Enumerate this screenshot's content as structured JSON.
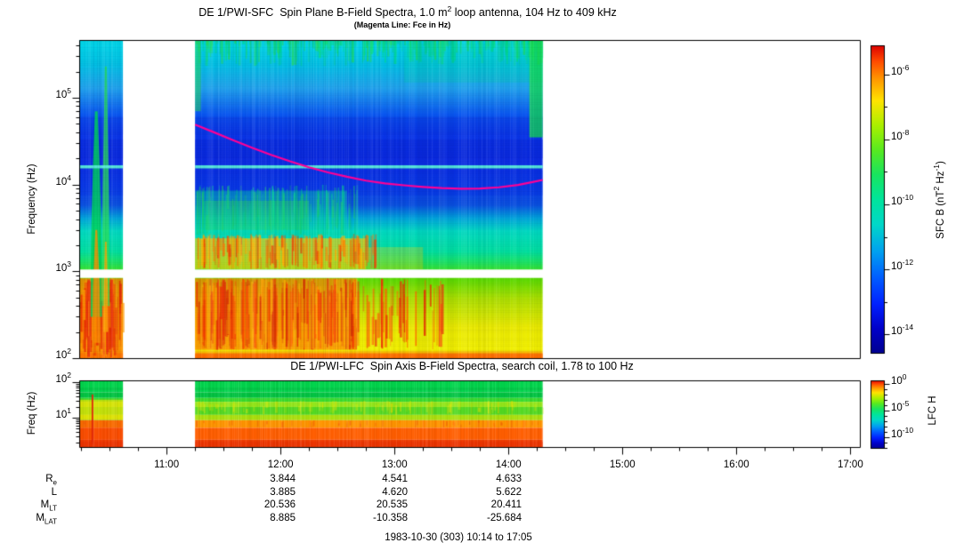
{
  "footer": {
    "text": "1983-10-30 (303) 10:14 to 17:05"
  },
  "ephemeris": {
    "columns": [
      "12:00",
      "13:00",
      "14:00"
    ],
    "rows": [
      {
        "label": "R",
        "sub": "e",
        "values": [
          "3.844",
          "4.541",
          "4.633"
        ]
      },
      {
        "label": "L",
        "sub": "",
        "values": [
          "3.885",
          "4.620",
          "5.622"
        ]
      },
      {
        "label": "M",
        "sub": "LT",
        "values": [
          "20.536",
          "20.535",
          "20.411"
        ]
      },
      {
        "label": "M",
        "sub": "LAT",
        "values": [
          "8.885",
          "-10.358",
          "-25.684"
        ]
      }
    ]
  },
  "chart_data": [
    {
      "type": "heatmap",
      "name": "SFC spectrogram",
      "title": "DE 1/PWI-SFC  Spin Plane B-Field Spectra, 1.0 m^2 loop antenna, 104 Hz to 409 kHz",
      "subtitle": "(Magenta Line: Fce in Hz)",
      "ylabel": "Frequency (Hz)",
      "ylim_hz": [
        100,
        463000
      ],
      "ytick_exponents": [
        5,
        4,
        3,
        2
      ],
      "xlim_time": [
        "10:14",
        "17:05"
      ],
      "xtick_labels": [
        "11:00",
        "12:00",
        "13:00",
        "14:00",
        "15:00",
        "16:00",
        "17:00"
      ],
      "data_time_segments": [
        [
          "10:14",
          "10:37"
        ],
        [
          "11:15",
          "14:18"
        ]
      ],
      "receiver_gap_hz": [
        840,
        1050
      ],
      "colorbar": {
        "label": "SFC B (nT^2 Hz^-1)",
        "tick_exponents": [
          -6,
          -8,
          -10,
          -12,
          -14
        ],
        "range_exp": [
          -5.1,
          -14.6
        ]
      },
      "fce_line": {
        "color": "#ff0096",
        "points": [
          [
            "11:15",
            49000
          ],
          [
            "11:25",
            40000
          ],
          [
            "11:35",
            32500
          ],
          [
            "11:45",
            26500
          ],
          [
            "11:55",
            22000
          ],
          [
            "12:05",
            18500
          ],
          [
            "12:15",
            15800
          ],
          [
            "12:25",
            13800
          ],
          [
            "12:35",
            12300
          ],
          [
            "12:45",
            11100
          ],
          [
            "12:55",
            10300
          ],
          [
            "13:05",
            9800
          ],
          [
            "13:15",
            9400
          ],
          [
            "13:25",
            9100
          ],
          [
            "13:35",
            8950
          ],
          [
            "13:45",
            9000
          ],
          [
            "13:55",
            9300
          ],
          [
            "14:05",
            9900
          ],
          [
            "14:12",
            10600
          ],
          [
            "14:18",
            11300
          ]
        ]
      },
      "background_profile": [
        [
          463000,
          "#00d8ea"
        ],
        [
          250000,
          "#00c2e4"
        ],
        [
          130000,
          "#20a2ec"
        ],
        [
          65000,
          "#0a58f0"
        ],
        [
          38000,
          "#0a36e8"
        ],
        [
          19000,
          "#0c2ce2"
        ],
        [
          9500,
          "#0a3ae6"
        ],
        [
          5800,
          "#0a50e0"
        ],
        [
          4000,
          "#00a8da"
        ],
        [
          2900,
          "#00d8c0"
        ],
        [
          1700,
          "#00e0a0"
        ],
        [
          1250,
          "#1ce260"
        ],
        [
          1060,
          "#34e234"
        ],
        [
          950,
          "#44da00"
        ],
        [
          470,
          "#b0e000"
        ],
        [
          230,
          "#eaea00"
        ],
        [
          125,
          "#f2f000"
        ],
        [
          110,
          "#ff8c00"
        ],
        [
          100,
          "#ff5400"
        ]
      ],
      "features": [
        {
          "kind": "band",
          "t": [
            "10:14",
            "14:18"
          ],
          "f": [
            20000,
            33000
          ],
          "color": "#0726d8",
          "alpha": 0.5
        },
        {
          "kind": "band",
          "t": [
            "10:14",
            "14:18"
          ],
          "f": [
            38000,
            60000
          ],
          "color": "#0a30dc",
          "alpha": 0.35
        },
        {
          "kind": "band",
          "t": [
            "10:14",
            "14:18"
          ],
          "f": [
            7500,
            14500
          ],
          "color": "#0830e0",
          "alpha": 0.3
        },
        {
          "kind": "drips",
          "t": [
            "11:15",
            "14:18"
          ],
          "f": [
            140000,
            463000
          ],
          "colors": [
            "#00e07c",
            "#00cf9e",
            "#22dc55"
          ],
          "count": 320
        },
        {
          "kind": "band",
          "t": [
            "13:05",
            "14:18"
          ],
          "f": [
            150000,
            420000
          ],
          "color": "#00d890",
          "alpha": 0.2
        },
        {
          "kind": "band",
          "t": [
            "14:11",
            "14:18"
          ],
          "f": [
            35000,
            463000
          ],
          "color": "#16dc4c",
          "alpha": 0.75
        },
        {
          "kind": "band",
          "t": [
            "11:15",
            "11:18"
          ],
          "f": [
            70000,
            463000
          ],
          "color": "#2edc50",
          "alpha": 0.5
        },
        {
          "kind": "band",
          "t": [
            "11:15",
            "12:45"
          ],
          "f": [
            1060,
            2400
          ],
          "color": "#ffd000",
          "alpha": 0.65
        },
        {
          "kind": "band",
          "t": [
            "12:45",
            "13:15"
          ],
          "f": [
            1060,
            1900
          ],
          "color": "#ffd000",
          "alpha": 0.3
        },
        {
          "kind": "streaks",
          "t": [
            "11:15",
            "12:50"
          ],
          "f": [
            1060,
            2700
          ],
          "colors": [
            "#ff8000",
            "#f04000",
            "#ffb400"
          ],
          "count": 160,
          "alpha": [
            0.25,
            0.8
          ],
          "w": [
            1,
            3
          ]
        },
        {
          "kind": "band",
          "t": [
            "11:15",
            "12:35"
          ],
          "f": [
            2600,
            8500
          ],
          "color": "#00d9a8",
          "alpha": 0.4
        },
        {
          "kind": "band",
          "t": [
            "11:20",
            "12:15"
          ],
          "f": [
            3000,
            6500
          ],
          "color": "#2edc50",
          "alpha": 0.35
        },
        {
          "kind": "streaks",
          "t": [
            "11:15",
            "12:40"
          ],
          "f": [
            2600,
            10000
          ],
          "colors": [
            "#20d860",
            "#00d890"
          ],
          "count": 130,
          "alpha": [
            0.15,
            0.5
          ],
          "w": [
            1,
            2
          ]
        },
        {
          "kind": "band",
          "t": [
            "11:15",
            "12:40"
          ],
          "f": [
            125,
            830
          ],
          "color": "#ff8200",
          "alpha": 0.72
        },
        {
          "kind": "streaks",
          "t": [
            "11:15",
            "12:40"
          ],
          "f": [
            125,
            830
          ],
          "colors": [
            "#ee2800",
            "#ff5500",
            "#d83000",
            "#ffb000"
          ],
          "count": 260,
          "alpha": [
            0.25,
            0.75
          ],
          "w": [
            1,
            3
          ]
        },
        {
          "kind": "streaks",
          "t": [
            "12:40",
            "13:25"
          ],
          "f": [
            125,
            830
          ],
          "colors": [
            "#ee3000",
            "#ff6600"
          ],
          "count": 46,
          "alpha": [
            0.35,
            0.85
          ],
          "w": [
            1,
            3
          ]
        },
        {
          "kind": "band",
          "t": [
            "10:14",
            "14:18"
          ],
          "f": [
            100,
            113
          ],
          "color": "#ff7000",
          "alpha": 0.85
        },
        {
          "kind": "band",
          "t": [
            "10:14",
            "10:37"
          ],
          "f": [
            100,
            830
          ],
          "color": "#ff7800",
          "alpha": 0.75
        },
        {
          "kind": "streaks",
          "t": [
            "10:14",
            "10:37"
          ],
          "f": [
            100,
            830
          ],
          "colors": [
            "#e82800",
            "#ff9800"
          ],
          "count": 90,
          "alpha": [
            0.3,
            0.8
          ],
          "w": [
            1,
            3
          ]
        },
        {
          "kind": "plume",
          "t_center": "10:23",
          "hw_min": [
            0.7,
            3.0
          ],
          "f": [
            300,
            70000
          ],
          "color": "#00d855",
          "alpha": 0.8
        },
        {
          "kind": "plume",
          "t_center": "10:28",
          "hw_min": [
            0.5,
            2.0
          ],
          "f": [
            400,
            230000
          ],
          "color": "#22dc50",
          "alpha": 0.75
        },
        {
          "kind": "plume",
          "t_center": "10:23",
          "hw_min": [
            0.5,
            2.2
          ],
          "f": [
            150,
            3000
          ],
          "color": "#ff9000",
          "alpha": 0.8
        },
        {
          "kind": "plume",
          "t_center": "10:28",
          "hw_min": [
            0.4,
            1.3
          ],
          "f": [
            200,
            2200
          ],
          "color": "#ffa500",
          "alpha": 0.8
        },
        {
          "kind": "hline",
          "f": 16000,
          "color": "#55ecd8",
          "w": 3.5
        }
      ]
    },
    {
      "type": "heatmap",
      "name": "LFC spectrogram",
      "title": "DE 1/PWI-LFC  Spin Axis B-Field Spectra, search coil, 1.78 to 100 Hz",
      "ylabel": "Freq (Hz)",
      "ylim_hz": [
        1.5,
        108
      ],
      "ytick_exponents": [
        2,
        1
      ],
      "colorbar": {
        "label": "LFC H",
        "tick_exponents": [
          0,
          -5,
          -10
        ],
        "range_exp": [
          0.67,
          -12.17
        ]
      },
      "bands": [
        [
          108,
          52,
          "#00d44c"
        ],
        [
          52,
          36,
          "#00c342"
        ],
        [
          36,
          28,
          "#38db2e"
        ],
        [
          28,
          20,
          "#93e61a"
        ],
        [
          20,
          12,
          "#52d922"
        ],
        [
          12,
          8.5,
          "#abe00e"
        ],
        [
          8.5,
          5.2,
          "#ff9500"
        ],
        [
          5.2,
          2.4,
          "#ff5e00"
        ],
        [
          2.4,
          1.5,
          "#ef3a00"
        ]
      ],
      "features": [
        {
          "kind": "band",
          "t": [
            "10:14",
            "14:18"
          ],
          "f": [
            60,
            70
          ],
          "color": "#00b040",
          "alpha": 0.35
        },
        {
          "kind": "band",
          "t": [
            "10:14",
            "10:37"
          ],
          "f": [
            9,
            32
          ],
          "color": "#f2e200",
          "alpha": 0.7
        },
        {
          "kind": "band",
          "t": [
            "10:14",
            "10:37"
          ],
          "f": [
            1.5,
            8.5
          ],
          "color": "#f23800",
          "alpha": 0.45
        },
        {
          "kind": "vline",
          "t": "10:21",
          "f": [
            1.8,
            45
          ],
          "color": "#e02000",
          "w": 2
        },
        {
          "kind": "streaks",
          "t": [
            "11:15",
            "14:18"
          ],
          "f": [
            12,
            30
          ],
          "colors": [
            "#ffe600",
            "#d8e800"
          ],
          "count": 90,
          "alpha": [
            0.15,
            0.45
          ],
          "w": [
            1,
            3
          ]
        },
        {
          "kind": "streaks",
          "t": [
            "10:14",
            "14:18"
          ],
          "f": [
            5.2,
            8.5
          ],
          "colors": [
            "#ff5e00",
            "#e84800"
          ],
          "count": 70,
          "alpha": [
            0.2,
            0.5
          ],
          "w": [
            1,
            2
          ]
        },
        {
          "kind": "band",
          "t": [
            "10:14",
            "14:18"
          ],
          "f": [
            1.5,
            2.1
          ],
          "color": "#e83000",
          "alpha": 0.6
        }
      ]
    }
  ]
}
